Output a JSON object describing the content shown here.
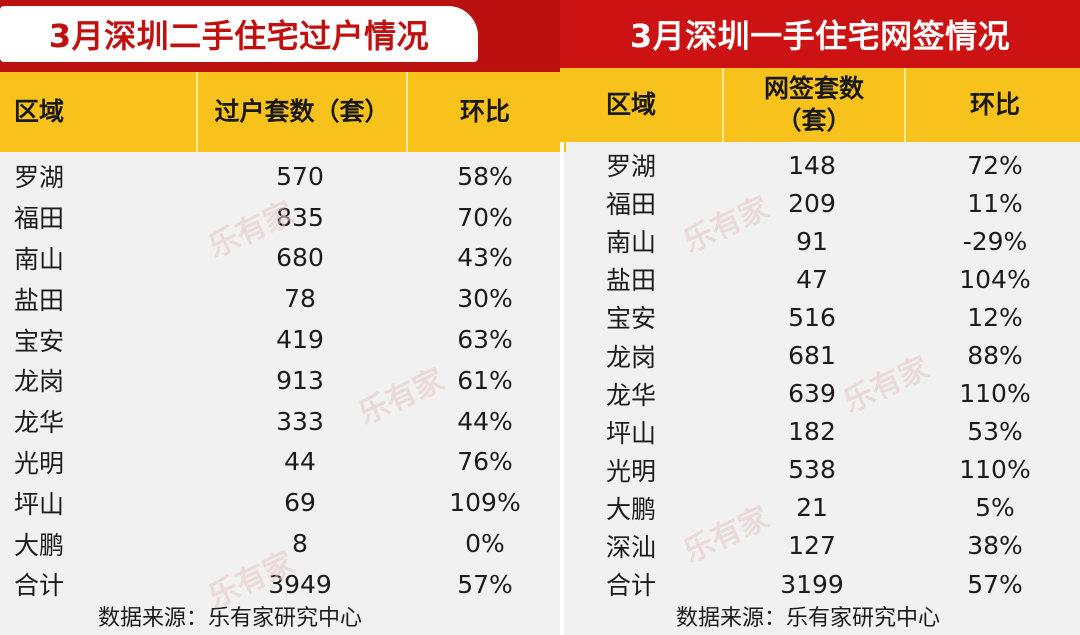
{
  "left": {
    "title": "3月深圳二手住宅过户情况",
    "headers": [
      "区域",
      "过户套数（套）",
      "环比"
    ],
    "rows": [
      [
        "罗湖",
        "570",
        "58%"
      ],
      [
        "福田",
        "835",
        "70%"
      ],
      [
        "南山",
        "680",
        "43%"
      ],
      [
        "盐田",
        "78",
        "30%"
      ],
      [
        "宝安",
        "419",
        "63%"
      ],
      [
        "龙岗",
        "913",
        "61%"
      ],
      [
        "龙华",
        "333",
        "44%"
      ],
      [
        "光明",
        "44",
        "76%"
      ],
      [
        "坪山",
        "69",
        "109%"
      ],
      [
        "大鹏",
        "8",
        "0%"
      ],
      [
        "合计",
        "3949",
        "57%"
      ]
    ],
    "source": "数据来源：乐有家研究中心"
  },
  "right": {
    "title": "3月深圳一手住宅网签情况",
    "headers": [
      "区域",
      "网签套数\n（套）",
      "环比"
    ],
    "rows": [
      [
        "罗湖",
        "148",
        "72%"
      ],
      [
        "福田",
        "209",
        "11%"
      ],
      [
        "南山",
        "91",
        "-29%"
      ],
      [
        "盐田",
        "47",
        "104%"
      ],
      [
        "宝安",
        "516",
        "12%"
      ],
      [
        "龙岗",
        "681",
        "88%"
      ],
      [
        "龙华",
        "639",
        "110%"
      ],
      [
        "坪山",
        "182",
        "53%"
      ],
      [
        "光明",
        "538",
        "110%"
      ],
      [
        "大鹏",
        "21",
        "5%"
      ],
      [
        "深汕",
        "127",
        "38%"
      ],
      [
        "合计",
        "3199",
        "57%"
      ]
    ],
    "source": "数据来源：乐有家研究中心"
  },
  "watermark": "乐有家",
  "colors": {
    "title_red": "#bb1010",
    "header_yellow": "#f8c21c",
    "background": "#f1f1f1"
  }
}
